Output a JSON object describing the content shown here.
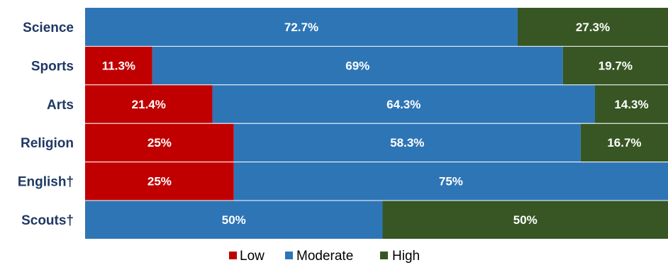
{
  "chart_data": {
    "type": "bar",
    "orientation": "horizontal",
    "stacked": "percent",
    "categories": [
      "Science",
      "Sports",
      "Arts",
      "Religion",
      "English†",
      "Scouts†"
    ],
    "series": [
      {
        "name": "Low",
        "color": "#c00000",
        "values": [
          0,
          11.3,
          21.4,
          25,
          25,
          0
        ]
      },
      {
        "name": "Moderate",
        "color": "#2e75b6",
        "values": [
          72.7,
          69,
          64.3,
          58.3,
          75,
          50
        ]
      },
      {
        "name": "High",
        "color": "#375623",
        "values": [
          27.3,
          19.7,
          14.3,
          16.7,
          0,
          50
        ]
      }
    ],
    "data_labels": [
      [
        "",
        "11.3%",
        "21.4%",
        "25%",
        "25%",
        ""
      ],
      [
        "72.7%",
        "69%",
        "64.3%",
        "58.3%",
        "75%",
        "50%"
      ],
      [
        "27.3%",
        "19.7%",
        "14.3%",
        "16.7%",
        "",
        "50%"
      ]
    ],
    "xlim": [
      0,
      100
    ],
    "legend_position": "bottom",
    "grid": false
  }
}
